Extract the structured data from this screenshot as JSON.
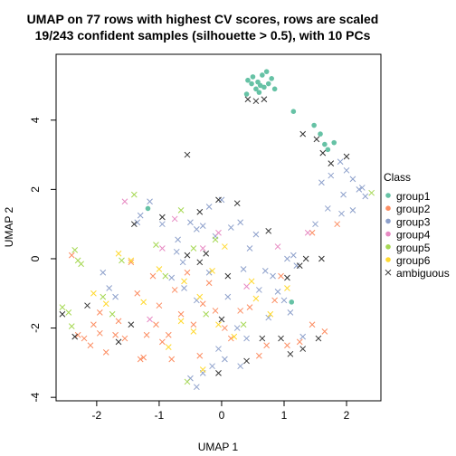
{
  "chart_data": {
    "type": "scatter",
    "title": "UMAP on 77 rows with highest CV scores, rows are scaled",
    "subtitle": "19/243 confident samples (silhouette > 0.5), with 10 PCs",
    "xlabel": "UMAP 1",
    "ylabel": "UMAP 2",
    "xlim": [
      -2.65,
      2.55
    ],
    "ylim": [
      -4.1,
      5.9
    ],
    "xticks": [
      -2,
      -1,
      0,
      1,
      2
    ],
    "yticks": [
      -4,
      -2,
      0,
      2,
      4
    ],
    "legend": {
      "title": "Class",
      "placement": "right",
      "entries": [
        {
          "label": "group1",
          "color": "#66C2A5",
          "marker": "circle"
        },
        {
          "label": "group2",
          "color": "#FC8D62",
          "marker": "circle"
        },
        {
          "label": "group3",
          "color": "#8DA0CB",
          "marker": "circle"
        },
        {
          "label": "group4",
          "color": "#E78AC3",
          "marker": "circle"
        },
        {
          "label": "group5",
          "color": "#A6D854",
          "marker": "circle"
        },
        {
          "label": "group6",
          "color": "#FFD92F",
          "marker": "circle"
        },
        {
          "label": "ambiguous",
          "color": "#333333",
          "marker": "x"
        }
      ]
    },
    "series": [
      {
        "name": "group1",
        "marker": "circle",
        "color": "#66C2A5",
        "points": [
          [
            0.42,
            5.15
          ],
          [
            0.5,
            5.25
          ],
          [
            0.58,
            5.1
          ],
          [
            0.65,
            5.3
          ],
          [
            0.72,
            5.4
          ],
          [
            0.8,
            5.2
          ],
          [
            0.62,
            5.0
          ],
          [
            0.55,
            4.9
          ],
          [
            0.68,
            4.95
          ],
          [
            0.48,
            5.05
          ],
          [
            0.75,
            5.05
          ],
          [
            0.85,
            4.9
          ],
          [
            0.4,
            4.75
          ],
          [
            0.6,
            4.8
          ],
          [
            1.15,
            4.25
          ],
          [
            1.48,
            3.85
          ],
          [
            1.58,
            3.6
          ],
          [
            1.65,
            3.3
          ],
          [
            1.8,
            3.35
          ],
          [
            1.7,
            3.15
          ],
          [
            1.12,
            -1.25
          ],
          [
            -1.18,
            1.45
          ]
        ]
      },
      {
        "name": "group2",
        "marker": "x",
        "color": "#FC8D62",
        "points": [
          [
            -2.4,
            0.1
          ],
          [
            -2.3,
            -2.2
          ],
          [
            -2.2,
            -2.3
          ],
          [
            -2.1,
            -2.5
          ],
          [
            -1.95,
            -2.15
          ],
          [
            -1.85,
            -2.7
          ],
          [
            -1.7,
            -2.2
          ],
          [
            -1.65,
            -1.8
          ],
          [
            -1.55,
            -2.3
          ],
          [
            -1.45,
            -0.1
          ],
          [
            -1.3,
            -2.9
          ],
          [
            -1.25,
            -2.85
          ],
          [
            -1.2,
            -2.2
          ],
          [
            -1.1,
            -0.5
          ],
          [
            -1.05,
            -1.9
          ],
          [
            -0.95,
            -2.4
          ],
          [
            -0.85,
            -2.2
          ],
          [
            -0.8,
            -2.9
          ],
          [
            -0.75,
            -0.9
          ],
          [
            -0.65,
            -1.6
          ],
          [
            -0.55,
            -0.4
          ],
          [
            -0.45,
            -1.9
          ],
          [
            -0.35,
            -2.8
          ],
          [
            -0.3,
            -1.3
          ],
          [
            -0.2,
            -0.7
          ],
          [
            -0.1,
            -1.5
          ],
          [
            0.05,
            -2.0
          ],
          [
            0.15,
            -2.3
          ],
          [
            0.3,
            -1.5
          ],
          [
            0.45,
            -1.4
          ],
          [
            0.6,
            -2.8
          ],
          [
            0.72,
            -2.5
          ],
          [
            0.85,
            -1.2
          ],
          [
            1.05,
            -2.5
          ],
          [
            1.25,
            -2.4
          ],
          [
            1.45,
            -1.9
          ],
          [
            1.65,
            -2.1
          ],
          [
            1.85,
            1.0
          ],
          [
            1.45,
            0.75
          ],
          [
            -1.95,
            -1.55
          ],
          [
            -2.05,
            -1.9
          ],
          [
            -1.35,
            -1.0
          ],
          [
            -1.0,
            -1.35
          ],
          [
            0.95,
            -0.5
          ]
        ]
      },
      {
        "name": "group3",
        "marker": "x",
        "color": "#8DA0CB",
        "points": [
          [
            -1.15,
            1.65
          ],
          [
            -1.3,
            1.25
          ],
          [
            -1.35,
            1.05
          ],
          [
            -0.95,
            1.0
          ],
          [
            -0.7,
            0.55
          ],
          [
            -0.5,
            1.05
          ],
          [
            -0.4,
            0.85
          ],
          [
            -0.3,
            0.95
          ],
          [
            -0.2,
            1.5
          ],
          [
            -0.1,
            0.65
          ],
          [
            0.0,
            1.7
          ],
          [
            0.15,
            0.9
          ],
          [
            0.3,
            1.05
          ],
          [
            0.45,
            0.3
          ],
          [
            0.55,
            0.7
          ],
          [
            0.7,
            -0.35
          ],
          [
            0.82,
            -0.5
          ],
          [
            0.9,
            -0.95
          ],
          [
            1.0,
            -1.2
          ],
          [
            1.1,
            -1.55
          ],
          [
            1.2,
            -0.2
          ],
          [
            1.3,
            -2.25
          ],
          [
            -1.9,
            -0.4
          ],
          [
            -1.8,
            -0.85
          ],
          [
            -1.7,
            -1.1
          ],
          [
            -0.6,
            -0.85
          ],
          [
            -0.4,
            -1.2
          ],
          [
            -0.2,
            -0.4
          ],
          [
            0.1,
            -1.1
          ],
          [
            0.25,
            -2.0
          ],
          [
            0.4,
            -2.3
          ],
          [
            0.35,
            -0.3
          ],
          [
            -0.05,
            -2.6
          ],
          [
            -0.15,
            -3.1
          ],
          [
            -0.3,
            -3.3
          ],
          [
            -0.4,
            -3.7
          ],
          [
            -0.5,
            -3.45
          ],
          [
            0.05,
            -2.9
          ],
          [
            0.3,
            -3.1
          ],
          [
            1.6,
            2.2
          ],
          [
            1.75,
            2.4
          ],
          [
            1.9,
            2.8
          ],
          [
            2.0,
            2.55
          ],
          [
            2.1,
            2.3
          ],
          [
            2.2,
            2.0
          ],
          [
            1.95,
            1.85
          ],
          [
            2.25,
            2.05
          ],
          [
            2.3,
            1.8
          ],
          [
            1.7,
            1.45
          ],
          [
            1.92,
            1.3
          ],
          [
            2.1,
            1.4
          ],
          [
            1.5,
            1.0
          ],
          [
            -0.62,
            -0.1
          ],
          [
            -0.72,
            0.2
          ],
          [
            -0.8,
            -0.55
          ],
          [
            0.6,
            -0.9
          ],
          [
            0.75,
            -1.7
          ],
          [
            1.05,
            0.0
          ],
          [
            1.15,
            0.1
          ]
        ]
      },
      {
        "name": "group4",
        "marker": "x",
        "color": "#E78AC3",
        "points": [
          [
            -1.55,
            1.65
          ],
          [
            -0.75,
            1.15
          ],
          [
            -0.3,
            0.3
          ],
          [
            0.9,
            0.35
          ],
          [
            1.38,
            0.75
          ],
          [
            -0.05,
            0.75
          ],
          [
            -0.95,
            0.3
          ],
          [
            0.4,
            -0.8
          ],
          [
            -1.15,
            -1.75
          ]
        ]
      },
      {
        "name": "group5",
        "marker": "x",
        "color": "#A6D854",
        "points": [
          [
            -2.35,
            0.25
          ],
          [
            -2.3,
            -0.05
          ],
          [
            -2.25,
            -0.15
          ],
          [
            -2.55,
            -1.4
          ],
          [
            -2.45,
            -1.55
          ],
          [
            -2.4,
            -1.95
          ],
          [
            -1.9,
            -1.1
          ],
          [
            -1.75,
            -1.6
          ],
          [
            -1.4,
            1.85
          ],
          [
            -1.05,
            0.4
          ],
          [
            -0.9,
            -0.5
          ],
          [
            -0.45,
            0.3
          ],
          [
            -0.1,
            0.55
          ],
          [
            0.35,
            -1.9
          ],
          [
            -0.25,
            -1.6
          ],
          [
            -0.55,
            -3.55
          ],
          [
            -0.65,
            1.4
          ],
          [
            -1.6,
            -0.05
          ],
          [
            2.4,
            1.9
          ]
        ]
      },
      {
        "name": "group6",
        "marker": "x",
        "color": "#FFD92F",
        "points": [
          [
            -2.05,
            -1.0
          ],
          [
            -1.85,
            -1.3
          ],
          [
            -1.65,
            0.15
          ],
          [
            -1.45,
            -0.05
          ],
          [
            -1.25,
            -1.25
          ],
          [
            -1.0,
            -0.3
          ],
          [
            -0.85,
            -2.55
          ],
          [
            -0.6,
            -0.65
          ],
          [
            -0.45,
            -2.1
          ],
          [
            -0.35,
            -1.1
          ],
          [
            -0.15,
            -0.35
          ],
          [
            -0.05,
            -1.9
          ],
          [
            0.05,
            0.35
          ],
          [
            0.2,
            -2.25
          ],
          [
            0.48,
            -0.65
          ],
          [
            0.55,
            -1.15
          ],
          [
            0.78,
            -1.6
          ],
          [
            -0.3,
            -3.2
          ],
          [
            1.05,
            -0.85
          ],
          [
            -0.65,
            -1.8
          ]
        ]
      },
      {
        "name": "ambiguous",
        "marker": "x",
        "color": "#333333",
        "points": [
          [
            0.42,
            4.6
          ],
          [
            0.55,
            4.55
          ],
          [
            0.68,
            4.6
          ],
          [
            1.3,
            3.6
          ],
          [
            1.52,
            3.45
          ],
          [
            1.62,
            3.05
          ],
          [
            1.75,
            2.75
          ],
          [
            2.0,
            2.95
          ],
          [
            -0.55,
            3.0
          ],
          [
            -0.05,
            1.7
          ],
          [
            -0.35,
            1.35
          ],
          [
            0.25,
            1.6
          ],
          [
            0.75,
            0.8
          ],
          [
            1.05,
            -0.55
          ],
          [
            1.25,
            -0.2
          ],
          [
            1.55,
            -2.3
          ],
          [
            1.3,
            -2.6
          ],
          [
            1.1,
            -2.75
          ],
          [
            0.95,
            -2.3
          ],
          [
            -1.65,
            -2.4
          ],
          [
            -2.15,
            -1.35
          ],
          [
            -2.55,
            -1.6
          ],
          [
            -1.45,
            -1.9
          ],
          [
            -0.25,
            0.15
          ],
          [
            0.1,
            -0.5
          ],
          [
            0.0,
            -1.75
          ],
          [
            1.6,
            0.0
          ],
          [
            1.35,
            0.0
          ],
          [
            -0.95,
            1.2
          ],
          [
            -1.4,
            1.0
          ],
          [
            -0.55,
            0.1
          ],
          [
            -0.35,
            -0.1
          ],
          [
            -2.35,
            -2.25
          ],
          [
            0.65,
            -2.3
          ],
          [
            0.4,
            -2.95
          ],
          [
            -0.05,
            -3.3
          ]
        ]
      }
    ]
  }
}
